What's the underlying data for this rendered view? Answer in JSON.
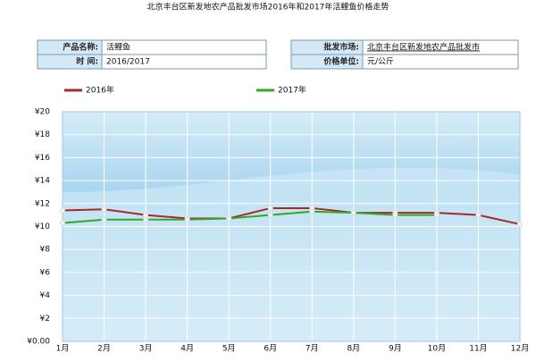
{
  "info": {
    "rows": [
      [
        "产品名称:",
        "活鲤鱼",
        "批发市场:",
        "北京丰台区新发地农产品批发市"
      ],
      [
        "时    间:",
        "2016/2017",
        "价格单位:",
        "元/公斤"
      ]
    ]
  },
  "chart_data": {
    "type": "line",
    "title": "北京丰台区新发地农产品批发市场2016年和2017年活鲤鱼价格走势",
    "categories": [
      "1月",
      "2月",
      "3月",
      "4月",
      "5月",
      "6月",
      "7月",
      "8月",
      "9月",
      "10月",
      "11月",
      "12月"
    ],
    "series": [
      {
        "name": "2016年",
        "color": "#a52a2a",
        "values": [
          11.4,
          11.5,
          11.0,
          10.7,
          10.7,
          11.6,
          11.6,
          11.2,
          11.2,
          11.2,
          11.0,
          10.2
        ]
      },
      {
        "name": "2017年",
        "color": "#33aa22",
        "values": [
          10.3,
          10.6,
          10.6,
          10.6,
          10.7,
          11.0,
          11.3,
          11.2,
          11.0,
          11.0,
          null,
          null
        ]
      }
    ],
    "ylim": [
      0,
      20
    ],
    "yticks": [
      {
        "value": 0,
        "label": "¥0.00"
      },
      {
        "value": 2,
        "label": "¥2"
      },
      {
        "value": 4,
        "label": "¥4"
      },
      {
        "value": 6,
        "label": "¥6"
      },
      {
        "value": 8,
        "label": "¥8"
      },
      {
        "value": 10,
        "label": "¥10"
      },
      {
        "value": 12,
        "label": "¥12"
      },
      {
        "value": 14,
        "label": "¥14"
      },
      {
        "value": 16,
        "label": "¥16"
      },
      {
        "value": 18,
        "label": "¥18"
      },
      {
        "value": 20,
        "label": "¥20"
      }
    ],
    "grid": true
  }
}
